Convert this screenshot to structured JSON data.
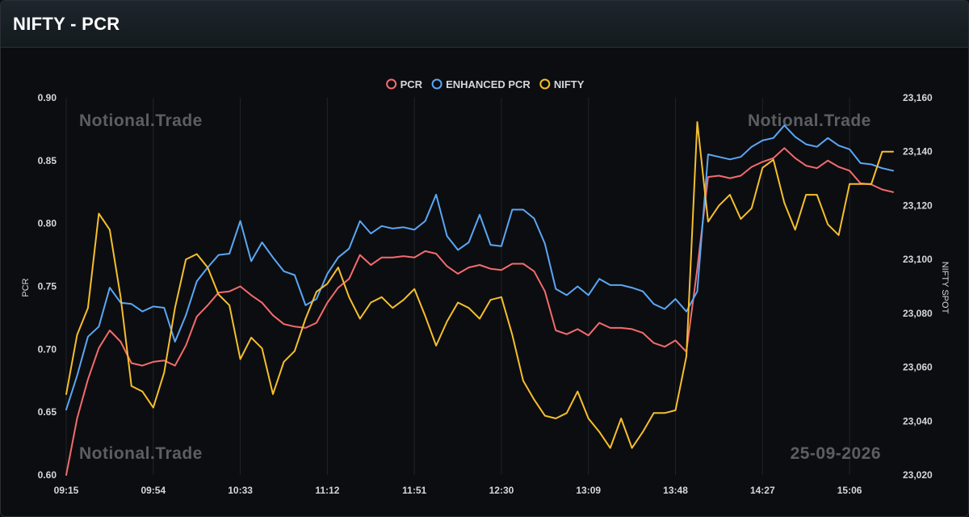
{
  "header": {
    "title": "NIFTY - PCR"
  },
  "watermarks": {
    "brand": "Notional.Trade",
    "date": "25-09-2026"
  },
  "colors": {
    "pcr": "#f46b6e",
    "enhanced": "#5aa7f5",
    "nifty": "#f5bf2c",
    "background": "#0c0d10"
  },
  "chart_data": {
    "type": "line",
    "legend_position": "top-center",
    "grid": {
      "vertical": true,
      "horizontal": false
    },
    "x_labels": [
      "09:15",
      "09:54",
      "10:33",
      "11:12",
      "11:51",
      "12:30",
      "13:09",
      "13:48",
      "14:27",
      "15:06"
    ],
    "x_label_every": 8,
    "ylabel": "PCR",
    "y2label": "NIFTY SPOT",
    "ylim": [
      0.6,
      0.9
    ],
    "yticks": [
      "0.90",
      "0.85",
      "0.80",
      "0.75",
      "0.70",
      "0.65",
      "0.60"
    ],
    "y2lim": [
      23020,
      23160
    ],
    "y2ticks": [
      "23,160",
      "23,140",
      "23,120",
      "23,100",
      "23,080",
      "23,060",
      "23,040",
      "23,020"
    ],
    "series": [
      {
        "name": "PCR",
        "axis": "left",
        "values": [
          0.6,
          0.645,
          0.676,
          0.701,
          0.715,
          0.706,
          0.689,
          0.687,
          0.69,
          0.691,
          0.687,
          0.703,
          0.726,
          0.735,
          0.745,
          0.746,
          0.75,
          0.743,
          0.737,
          0.727,
          0.72,
          0.718,
          0.717,
          0.721,
          0.737,
          0.749,
          0.756,
          0.775,
          0.767,
          0.773,
          0.773,
          0.774,
          0.773,
          0.778,
          0.776,
          0.766,
          0.76,
          0.765,
          0.767,
          0.764,
          0.763,
          0.768,
          0.768,
          0.762,
          0.746,
          0.715,
          0.712,
          0.716,
          0.711,
          0.721,
          0.717,
          0.717,
          0.716,
          0.713,
          0.705,
          0.702,
          0.707,
          0.698,
          0.764,
          0.837,
          0.838,
          0.836,
          0.838,
          0.845,
          0.849,
          0.852,
          0.86,
          0.852,
          0.846,
          0.844,
          0.85,
          0.845,
          0.842,
          0.832,
          0.831,
          0.827,
          0.825
        ]
      },
      {
        "name": "ENHANCED PCR",
        "axis": "left",
        "values": [
          0.652,
          0.679,
          0.71,
          0.718,
          0.749,
          0.737,
          0.736,
          0.73,
          0.734,
          0.733,
          0.706,
          0.727,
          0.754,
          0.765,
          0.775,
          0.776,
          0.802,
          0.77,
          0.785,
          0.773,
          0.762,
          0.759,
          0.735,
          0.74,
          0.76,
          0.773,
          0.78,
          0.802,
          0.792,
          0.798,
          0.796,
          0.797,
          0.795,
          0.802,
          0.823,
          0.79,
          0.779,
          0.785,
          0.807,
          0.783,
          0.782,
          0.811,
          0.811,
          0.804,
          0.784,
          0.748,
          0.743,
          0.75,
          0.743,
          0.756,
          0.751,
          0.751,
          0.749,
          0.746,
          0.736,
          0.732,
          0.74,
          0.73,
          0.746,
          0.855,
          0.853,
          0.851,
          0.853,
          0.861,
          0.866,
          0.868,
          0.878,
          0.869,
          0.863,
          0.861,
          0.868,
          0.862,
          0.859,
          0.848,
          0.847,
          0.844,
          0.842
        ]
      },
      {
        "name": "NIFTY",
        "axis": "right",
        "values": [
          23050,
          23072,
          23082,
          23117,
          23111,
          23086,
          23053,
          23051,
          23045,
          23058,
          23082,
          23100,
          23102,
          23097,
          23087,
          23083,
          23063,
          23071,
          23067,
          23050,
          23062,
          23066,
          23078,
          23088,
          23091,
          23097,
          23086,
          23078,
          23084,
          23086,
          23082,
          23085,
          23089,
          23079,
          23068,
          23077,
          23084,
          23082,
          23078,
          23085,
          23086,
          23072,
          23055,
          23048,
          23042,
          23041,
          23043,
          23051,
          23041,
          23036,
          23030,
          23041,
          23030,
          23036,
          23043,
          23043,
          23044,
          23064,
          23151,
          23114,
          23120,
          23124,
          23115,
          23119,
          23134,
          23137,
          23121,
          23111,
          23124,
          23124,
          23113,
          23109,
          23128,
          23128,
          23128,
          23140,
          23140
        ]
      }
    ]
  }
}
